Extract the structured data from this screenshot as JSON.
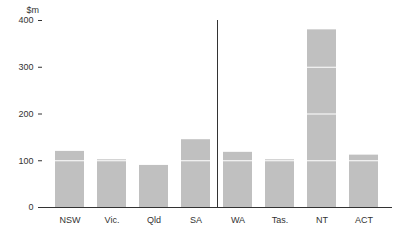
{
  "chart_data": {
    "type": "bar",
    "y_label": "$m",
    "categories": [
      "NSW",
      "Vic.",
      "Qld",
      "SA",
      "WA",
      "Tas.",
      "NT",
      "ACT"
    ],
    "values": [
      120,
      102,
      90,
      145,
      118,
      102,
      380,
      112
    ],
    "color": "#c0c0c0",
    "ylim": [
      0,
      400
    ],
    "yticks": [
      0,
      100,
      200,
      300,
      400
    ],
    "grid": true
  }
}
